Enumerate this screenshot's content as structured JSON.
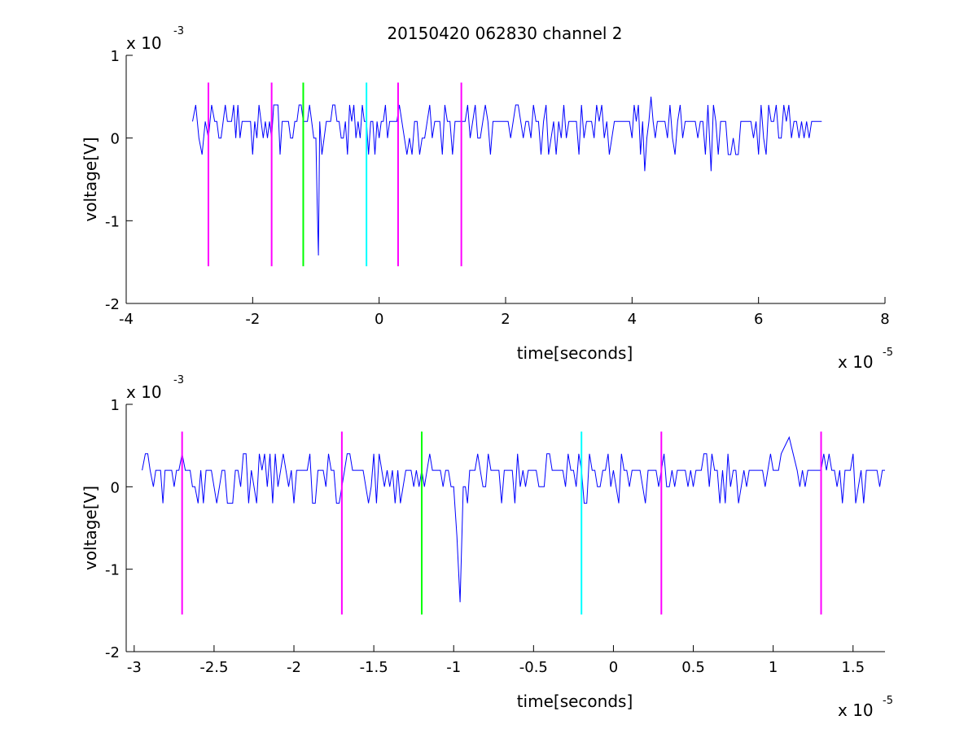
{
  "figure": {
    "title": "20150420 062830 channel 2"
  },
  "chart_data": [
    {
      "type": "line",
      "title": "20150420 062830 channel 2",
      "xlabel": "time[seconds]",
      "ylabel": "voltage[V]",
      "x_multiplier": "x 10",
      "x_exponent": "-5",
      "y_multiplier": "x 10",
      "y_exponent": "-3",
      "xlim": [
        -4,
        8
      ],
      "ylim": [
        -2,
        1
      ],
      "xticks": [
        -4,
        -2,
        0,
        2,
        4,
        6,
        8
      ],
      "yticks": [
        -2,
        -1,
        0,
        1
      ],
      "grid": false,
      "series": [
        {
          "color": "#0000ff",
          "x_range": [
            -2.95,
            7.0
          ],
          "points": [
            [
              -2.95,
              0.2
            ],
            [
              -2.9,
              0.4
            ],
            [
              -2.85,
              0.0
            ],
            [
              -2.8,
              -0.2
            ],
            [
              -2.75,
              0.2
            ],
            [
              -2.7,
              0.0
            ],
            [
              -2.65,
              0.4
            ],
            [
              -2.6,
              0.2
            ],
            [
              -2.5,
              0.0
            ],
            [
              -2.4,
              0.2
            ],
            [
              -2.3,
              0.4
            ],
            [
              -2.2,
              0.0
            ],
            [
              -2.1,
              0.2
            ],
            [
              -2.0,
              -0.2
            ],
            [
              -1.9,
              0.4
            ],
            [
              -1.8,
              0.2
            ],
            [
              -1.7,
              0.0
            ],
            [
              -1.6,
              0.4
            ],
            [
              -1.5,
              0.2
            ],
            [
              -1.4,
              0.0
            ],
            [
              -1.3,
              0.2
            ],
            [
              -1.2,
              0.2
            ],
            [
              -1.1,
              0.4
            ],
            [
              -1.0,
              0.0
            ],
            [
              -0.98,
              -0.8
            ],
            [
              -0.96,
              -1.42
            ],
            [
              -0.94,
              0.2
            ],
            [
              -0.8,
              0.2
            ],
            [
              -0.7,
              0.4
            ],
            [
              -0.6,
              0.0
            ],
            [
              -0.5,
              -0.2
            ],
            [
              -0.4,
              0.4
            ],
            [
              -0.3,
              0.0
            ],
            [
              -0.2,
              0.2
            ],
            [
              -0.1,
              0.2
            ],
            [
              0.0,
              0.0
            ],
            [
              0.1,
              0.4
            ],
            [
              0.2,
              0.2
            ],
            [
              0.4,
              0.0
            ],
            [
              0.6,
              0.2
            ],
            [
              0.8,
              0.4
            ],
            [
              1.0,
              -0.2
            ],
            [
              1.2,
              0.2
            ],
            [
              1.4,
              0.4
            ],
            [
              1.6,
              0.0
            ],
            [
              1.8,
              0.2
            ],
            [
              2.0,
              0.2
            ],
            [
              2.2,
              0.4
            ],
            [
              2.4,
              0.0
            ],
            [
              2.6,
              0.2
            ],
            [
              2.8,
              -0.2
            ],
            [
              3.0,
              0.2
            ],
            [
              3.2,
              0.4
            ],
            [
              3.4,
              0.0
            ],
            [
              3.6,
              0.2
            ],
            [
              3.8,
              0.2
            ],
            [
              4.0,
              0.0
            ],
            [
              4.1,
              0.4
            ],
            [
              4.2,
              -0.4
            ],
            [
              4.3,
              0.5
            ],
            [
              4.4,
              0.2
            ],
            [
              4.6,
              0.4
            ],
            [
              4.8,
              0.0
            ],
            [
              5.0,
              0.2
            ],
            [
              5.2,
              0.4
            ],
            [
              5.25,
              -0.4
            ],
            [
              5.4,
              0.2
            ],
            [
              5.6,
              0.0
            ],
            [
              5.8,
              0.2
            ],
            [
              6.0,
              -0.2
            ],
            [
              6.2,
              0.2
            ],
            [
              6.4,
              0.4
            ],
            [
              6.6,
              0.2
            ],
            [
              6.8,
              0.0
            ],
            [
              7.0,
              0.2
            ]
          ]
        }
      ],
      "markers": [
        {
          "x": -2.7,
          "color": "#ff00ff"
        },
        {
          "x": -1.7,
          "color": "#ff00ff"
        },
        {
          "x": -1.2,
          "color": "#00ff00"
        },
        {
          "x": -0.2,
          "color": "#00ffff"
        },
        {
          "x": 0.3,
          "color": "#ff00ff"
        },
        {
          "x": 1.3,
          "color": "#ff00ff"
        }
      ],
      "marker_y_range": [
        -1.55,
        0.67
      ]
    },
    {
      "type": "line",
      "title": "",
      "xlabel": "time[seconds]",
      "ylabel": "voltage[V]",
      "x_multiplier": "x 10",
      "x_exponent": "-5",
      "y_multiplier": "x 10",
      "y_exponent": "-3",
      "xlim": [
        -3.05,
        1.7
      ],
      "ylim": [
        -2,
        1
      ],
      "xticks": [
        -3,
        -2.5,
        -2,
        -1.5,
        -1,
        -0.5,
        0,
        0.5,
        1,
        1.5
      ],
      "yticks": [
        -2,
        -1,
        0,
        1
      ],
      "grid": false,
      "series": [
        {
          "color": "#0000ff",
          "x_range": [
            -2.95,
            1.7
          ],
          "points": [
            [
              -2.95,
              0.2
            ],
            [
              -2.93,
              0.4
            ],
            [
              -2.9,
              0.2
            ],
            [
              -2.88,
              0.0
            ],
            [
              -2.85,
              0.2
            ],
            [
              -2.82,
              -0.2
            ],
            [
              -2.78,
              0.2
            ],
            [
              -2.75,
              0.0
            ],
            [
              -2.72,
              0.2
            ],
            [
              -2.7,
              0.4
            ],
            [
              -2.68,
              0.2
            ],
            [
              -2.65,
              0.2
            ],
            [
              -2.62,
              0.0
            ],
            [
              -2.6,
              -0.2
            ],
            [
              -2.55,
              0.2
            ],
            [
              -2.5,
              0.0
            ],
            [
              -2.45,
              0.2
            ],
            [
              -2.4,
              -0.2
            ],
            [
              -2.35,
              0.2
            ],
            [
              -2.3,
              0.4
            ],
            [
              -2.25,
              0.0
            ],
            [
              -2.2,
              0.2
            ],
            [
              -2.15,
              0.4
            ],
            [
              -2.1,
              0.0
            ],
            [
              -2.05,
              0.2
            ],
            [
              -2.0,
              -0.2
            ],
            [
              -1.95,
              0.2
            ],
            [
              -1.9,
              0.4
            ],
            [
              -1.85,
              0.2
            ],
            [
              -1.8,
              0.0
            ],
            [
              -1.75,
              0.2
            ],
            [
              -1.7,
              0.0
            ],
            [
              -1.65,
              0.4
            ],
            [
              -1.6,
              0.2
            ],
            [
              -1.55,
              0.0
            ],
            [
              -1.5,
              0.4
            ],
            [
              -1.45,
              0.2
            ],
            [
              -1.4,
              0.0
            ],
            [
              -1.35,
              0.2
            ],
            [
              -1.3,
              0.2
            ],
            [
              -1.25,
              0.0
            ],
            [
              -1.2,
              0.2
            ],
            [
              -1.15,
              0.4
            ],
            [
              -1.1,
              0.2
            ],
            [
              -1.05,
              0.2
            ],
            [
              -1.0,
              0.0
            ],
            [
              -0.98,
              -0.6
            ],
            [
              -0.96,
              -1.4
            ],
            [
              -0.94,
              0.0
            ],
            [
              -0.9,
              0.2
            ],
            [
              -0.85,
              0.4
            ],
            [
              -0.8,
              0.0
            ],
            [
              -0.75,
              0.2
            ],
            [
              -0.7,
              -0.2
            ],
            [
              -0.65,
              0.2
            ],
            [
              -0.6,
              0.4
            ],
            [
              -0.55,
              0.0
            ],
            [
              -0.5,
              0.2
            ],
            [
              -0.45,
              0.0
            ],
            [
              -0.4,
              0.4
            ],
            [
              -0.35,
              0.2
            ],
            [
              -0.3,
              0.0
            ],
            [
              -0.25,
              0.2
            ],
            [
              -0.2,
              0.2
            ],
            [
              -0.15,
              0.4
            ],
            [
              -0.1,
              0.0
            ],
            [
              -0.05,
              0.2
            ],
            [
              0.0,
              0.2
            ],
            [
              0.05,
              0.4
            ],
            [
              0.1,
              0.0
            ],
            [
              0.15,
              0.2
            ],
            [
              0.2,
              -0.2
            ],
            [
              0.25,
              0.2
            ],
            [
              0.3,
              0.2
            ],
            [
              0.35,
              0.0
            ],
            [
              0.4,
              0.2
            ],
            [
              0.45,
              0.2
            ],
            [
              0.5,
              0.0
            ],
            [
              0.55,
              0.2
            ],
            [
              0.6,
              0.0
            ],
            [
              0.65,
              0.2
            ],
            [
              0.7,
              -0.2
            ],
            [
              0.75,
              0.2
            ],
            [
              0.8,
              0.0
            ],
            [
              0.85,
              0.2
            ],
            [
              0.9,
              0.2
            ],
            [
              0.95,
              0.0
            ],
            [
              1.0,
              0.2
            ],
            [
              1.05,
              0.4
            ],
            [
              1.1,
              0.6
            ],
            [
              1.15,
              0.2
            ],
            [
              1.2,
              0.0
            ],
            [
              1.25,
              0.2
            ],
            [
              1.3,
              0.2
            ],
            [
              1.35,
              0.4
            ],
            [
              1.4,
              0.0
            ],
            [
              1.45,
              0.2
            ],
            [
              1.5,
              0.4
            ],
            [
              1.55,
              0.2
            ],
            [
              1.6,
              0.2
            ],
            [
              1.65,
              0.2
            ],
            [
              1.7,
              0.2
            ]
          ]
        }
      ],
      "markers": [
        {
          "x": -2.7,
          "color": "#ff00ff"
        },
        {
          "x": -1.7,
          "color": "#ff00ff"
        },
        {
          "x": -1.2,
          "color": "#00ff00"
        },
        {
          "x": -0.2,
          "color": "#00ffff"
        },
        {
          "x": 0.3,
          "color": "#ff00ff"
        },
        {
          "x": 1.3,
          "color": "#ff00ff"
        }
      ],
      "marker_y_range": [
        -1.55,
        0.67
      ]
    }
  ]
}
